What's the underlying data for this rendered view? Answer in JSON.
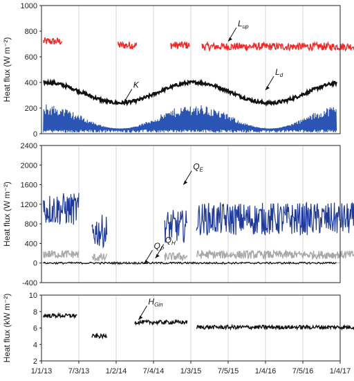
{
  "chart_data": [
    {
      "type": "line",
      "ylabel": "Heat flux (W m⁻²)",
      "ylim": [
        0,
        1000
      ],
      "yticks": [
        "0",
        "200",
        "400",
        "600",
        "800",
        "1000"
      ],
      "x_categories": [
        "1/1/13",
        "7/3/13",
        "1/2/14",
        "7/4/14",
        "1/3/15",
        "7/5/15",
        "1/4/16",
        "7/5/16",
        "1/4/17"
      ],
      "grid": "vertical",
      "series": [
        {
          "name": "L",
          "sub": "up",
          "color": "#ff2020",
          "style": "segments",
          "segments": [
            [
              0.05,
              0.55,
              720
            ],
            [
              2.05,
              2.55,
              690
            ],
            [
              3.45,
              3.96,
              690
            ],
            [
              4.3,
              9.0,
              680
            ]
          ]
        },
        {
          "name": "L",
          "sub": "d",
          "color": "#111111",
          "style": "seasonal",
          "mean": 320,
          "amp": 80
        },
        {
          "name": "K",
          "color": "#2a55b5",
          "style": "band",
          "low": 40,
          "high": 230
        }
      ],
      "annotations": [
        {
          "text": "L",
          "sub": "up",
          "target_x": 5.0,
          "target_y": 720
        },
        {
          "text": "K",
          "target_x": 2.2,
          "target_y": 240
        },
        {
          "text": "L",
          "sub": "d",
          "target_x": 6.0,
          "target_y": 340
        }
      ]
    },
    {
      "type": "line",
      "ylabel": "Heat flux (W m⁻²)",
      "ylim": [
        -400,
        2400
      ],
      "yticks": [
        "-400",
        "0",
        "400",
        "800",
        "1200",
        "1600",
        "2000",
        "2400"
      ],
      "x_categories": [
        "1/1/13",
        "7/3/13",
        "1/2/14",
        "7/4/14",
        "1/3/15",
        "7/5/15",
        "1/4/16",
        "7/5/16",
        "1/4/17"
      ],
      "grid": "vertical",
      "series": [
        {
          "name": "Q",
          "sub": "E",
          "color": "#1f3a9e",
          "style": "segments",
          "segments": [
            [
              0.05,
              1.0,
              1100
            ],
            [
              1.35,
              1.75,
              650
            ],
            [
              3.3,
              3.9,
              750
            ],
            [
              4.15,
              8.9,
              900
            ]
          ]
        },
        {
          "name": "Q",
          "sub": "H",
          "color": "#a8a8a8",
          "style": "segments",
          "segments": [
            [
              0.05,
              1.0,
              180
            ],
            [
              1.35,
              1.75,
              110
            ],
            [
              3.3,
              3.9,
              130
            ],
            [
              4.15,
              8.9,
              170
            ]
          ]
        },
        {
          "name": "Q",
          "sub": "P",
          "color": "#111111",
          "style": "flat",
          "value": 0
        }
      ],
      "annotations": [
        {
          "text": "Q",
          "sub": "E",
          "target_x": 3.8,
          "target_y": 1600
        },
        {
          "text": "Q",
          "sub": "H",
          "target_x": 3.05,
          "target_y": 100
        },
        {
          "text": "Q",
          "sub": "P",
          "target_x": 2.75,
          "target_y": -20
        }
      ]
    },
    {
      "type": "line",
      "ylabel": "Heat flux (kW m⁻²)",
      "ylim": [
        2,
        10
      ],
      "yticks": [
        "2",
        "4",
        "6",
        "8",
        "10"
      ],
      "x_categories": [
        "1/1/13",
        "7/3/13",
        "1/2/14",
        "7/4/14",
        "1/3/15",
        "7/5/15",
        "1/4/16",
        "7/5/16",
        "1/4/17"
      ],
      "grid": "vertical",
      "series": [
        {
          "name": "H",
          "sub": "Gin",
          "color": "#111111",
          "style": "segments",
          "segments": [
            [
              0.05,
              0.95,
              7.5
            ],
            [
              1.35,
              1.75,
              5.0
            ],
            [
              2.5,
              3.9,
              6.7
            ],
            [
              4.15,
              8.9,
              6.1
            ]
          ]
        }
      ],
      "annotations": [
        {
          "text": "H",
          "sub": "Gin",
          "target_x": 2.6,
          "target_y": 7.0
        }
      ]
    }
  ]
}
